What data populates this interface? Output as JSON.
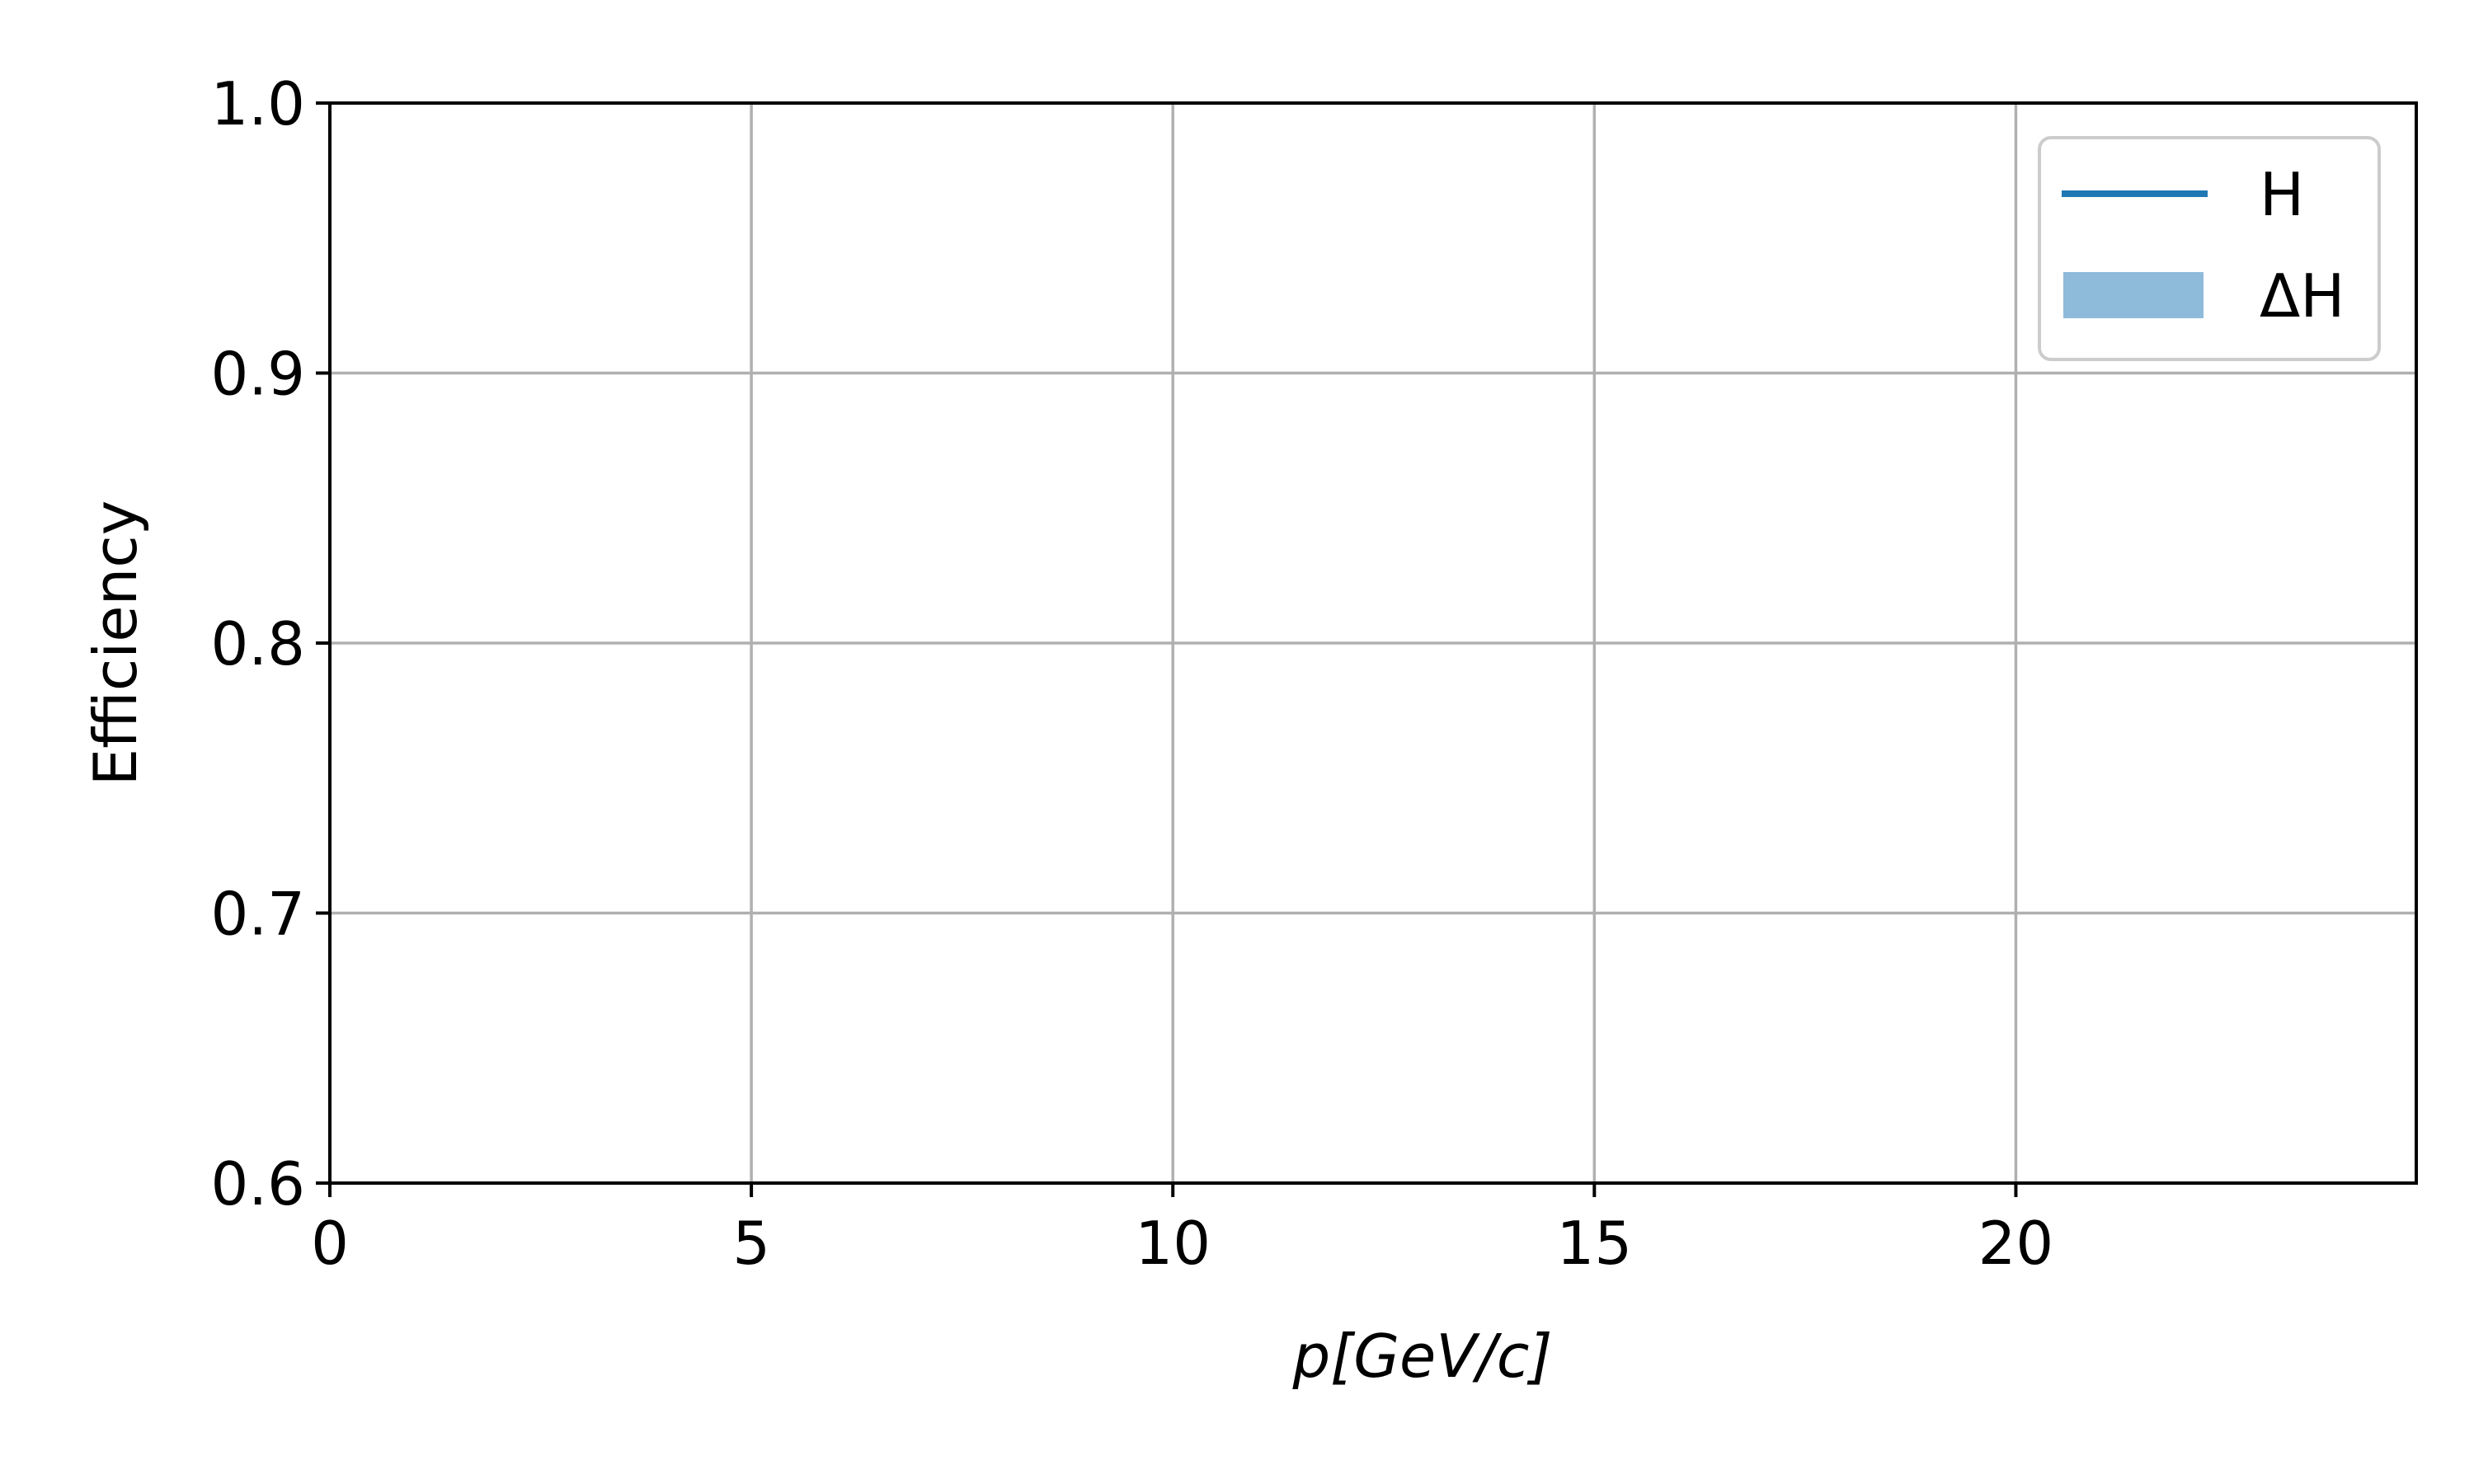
{
  "chart_data": {
    "type": "line",
    "title": "",
    "xlabel": "p[GeV/c]",
    "ylabel": "Efficiency",
    "xlim": [
      0,
      24.75
    ],
    "ylim": [
      0.6,
      1.0
    ],
    "x_ticks": [
      0,
      5,
      10,
      15,
      20
    ],
    "x_tick_labels": [
      "0",
      "5",
      "10",
      "15",
      "20"
    ],
    "y_ticks": [
      0.6,
      0.7,
      0.8,
      0.9,
      1.0
    ],
    "y_tick_labels": [
      "0.6",
      "0.7",
      "0.8",
      "0.9",
      "1.0"
    ],
    "grid": true,
    "legend_position": "top-right",
    "series": [
      {
        "name": "H",
        "kind": "line",
        "color": "#1f77b4",
        "x": [],
        "y": []
      },
      {
        "name": "ΔH",
        "kind": "band",
        "color": "#8fbbda",
        "x": [],
        "y_low": [],
        "y_high": []
      }
    ]
  }
}
